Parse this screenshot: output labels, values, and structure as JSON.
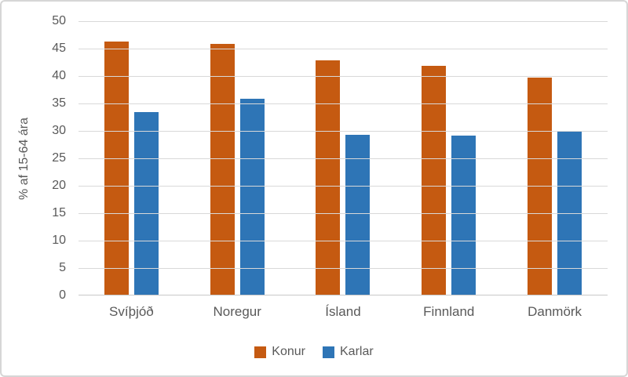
{
  "colors": {
    "text": "#595959",
    "grid": "#d9d9d9",
    "axis": "#c8c8c8",
    "border": "#d6d6d6",
    "konur": "#C55A11",
    "karlar": "#2E75B6"
  },
  "chart_data": {
    "type": "bar",
    "title": "",
    "xlabel": "",
    "ylabel": "% af 15-64 ára",
    "categories": [
      "Svíþjóð",
      "Noregur",
      "Ísland",
      "Finnland",
      "Danmörk"
    ],
    "series": [
      {
        "name": "Konur",
        "color": "#C55A11",
        "values": [
          46.3,
          45.8,
          42.8,
          41.9,
          39.7
        ]
      },
      {
        "name": "Karlar",
        "color": "#2E75B6",
        "values": [
          33.4,
          35.9,
          29.3,
          29.2,
          29.9
        ]
      }
    ],
    "ylim": [
      0,
      50
    ],
    "yticks": [
      0,
      5,
      10,
      15,
      20,
      25,
      30,
      35,
      40,
      45,
      50
    ],
    "grid": true,
    "legend_position": "bottom"
  }
}
